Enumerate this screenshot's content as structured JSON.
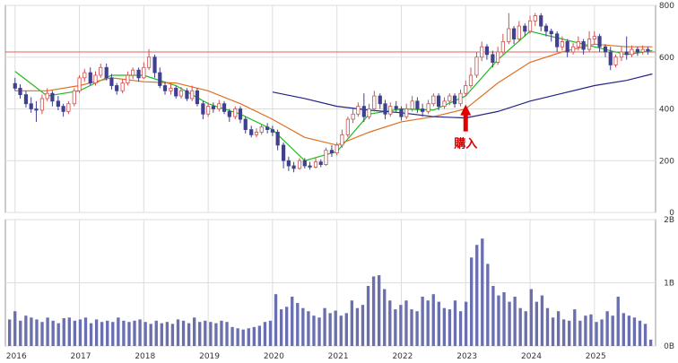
{
  "chart_data": [
    {
      "type": "candlestick",
      "x_ticks": [
        "2016",
        "2017",
        "2018",
        "2019",
        "2020",
        "2021",
        "2022",
        "2023",
        "2024",
        "2025"
      ],
      "y_ticks": [
        "0",
        "200",
        "400",
        "600",
        "800"
      ],
      "ylim": [
        0,
        800
      ],
      "grid": true,
      "reference_line": 620,
      "annotation": {
        "text": "購入",
        "date": 2023.0,
        "price": 410
      },
      "candles": [
        [
          2016.0,
          498,
          480,
          520,
          470
        ],
        [
          2016.08,
          480,
          455,
          495,
          440
        ],
        [
          2016.17,
          455,
          420,
          470,
          405
        ],
        [
          2016.25,
          420,
          400,
          445,
          385
        ],
        [
          2016.33,
          400,
          395,
          430,
          350
        ],
        [
          2016.42,
          395,
          440,
          455,
          380
        ],
        [
          2016.5,
          440,
          460,
          480,
          430
        ],
        [
          2016.58,
          460,
          430,
          470,
          410
        ],
        [
          2016.67,
          430,
          410,
          450,
          395
        ],
        [
          2016.75,
          410,
          390,
          420,
          370
        ],
        [
          2016.83,
          390,
          420,
          430,
          380
        ],
        [
          2016.92,
          420,
          470,
          480,
          410
        ],
        [
          2017.0,
          470,
          520,
          530,
          460
        ],
        [
          2017.08,
          520,
          540,
          555,
          505
        ],
        [
          2017.17,
          540,
          500,
          560,
          490
        ],
        [
          2017.25,
          500,
          530,
          545,
          490
        ],
        [
          2017.33,
          530,
          560,
          575,
          520
        ],
        [
          2017.42,
          560,
          520,
          575,
          510
        ],
        [
          2017.5,
          520,
          490,
          535,
          475
        ],
        [
          2017.58,
          490,
          470,
          500,
          455
        ],
        [
          2017.67,
          470,
          500,
          515,
          460
        ],
        [
          2017.75,
          500,
          530,
          545,
          490
        ],
        [
          2017.83,
          530,
          550,
          560,
          515
        ],
        [
          2017.92,
          550,
          520,
          560,
          505
        ],
        [
          2018.0,
          520,
          560,
          580,
          515
        ],
        [
          2018.08,
          560,
          600,
          630,
          550
        ],
        [
          2018.17,
          600,
          540,
          610,
          520
        ],
        [
          2018.25,
          540,
          490,
          560,
          480
        ],
        [
          2018.33,
          490,
          470,
          505,
          455
        ],
        [
          2018.42,
          470,
          480,
          495,
          455
        ],
        [
          2018.5,
          480,
          450,
          490,
          440
        ],
        [
          2018.58,
          450,
          470,
          485,
          440
        ],
        [
          2018.67,
          470,
          440,
          480,
          430
        ],
        [
          2018.75,
          440,
          470,
          490,
          430
        ],
        [
          2018.83,
          470,
          420,
          480,
          410
        ],
        [
          2018.92,
          420,
          380,
          430,
          360
        ],
        [
          2019.0,
          380,
          410,
          425,
          370
        ],
        [
          2019.08,
          410,
          400,
          425,
          385
        ],
        [
          2019.17,
          400,
          420,
          435,
          390
        ],
        [
          2019.25,
          420,
          390,
          430,
          380
        ],
        [
          2019.33,
          390,
          370,
          400,
          350
        ],
        [
          2019.42,
          370,
          400,
          410,
          360
        ],
        [
          2019.5,
          400,
          360,
          410,
          345
        ],
        [
          2019.58,
          360,
          320,
          370,
          305
        ],
        [
          2019.67,
          320,
          300,
          335,
          290
        ],
        [
          2019.75,
          300,
          310,
          325,
          290
        ],
        [
          2019.83,
          310,
          330,
          340,
          300
        ],
        [
          2019.92,
          330,
          320,
          345,
          305
        ],
        [
          2020.0,
          320,
          310,
          335,
          295
        ],
        [
          2020.08,
          310,
          260,
          320,
          240
        ],
        [
          2020.17,
          260,
          200,
          270,
          170
        ],
        [
          2020.25,
          200,
          180,
          215,
          160
        ],
        [
          2020.33,
          180,
          170,
          195,
          155
        ],
        [
          2020.42,
          170,
          200,
          210,
          165
        ],
        [
          2020.5,
          200,
          180,
          210,
          170
        ],
        [
          2020.58,
          180,
          175,
          195,
          165
        ],
        [
          2020.67,
          175,
          195,
          210,
          170
        ],
        [
          2020.75,
          195,
          185,
          205,
          175
        ],
        [
          2020.83,
          185,
          240,
          250,
          180
        ],
        [
          2020.92,
          240,
          230,
          260,
          215
        ],
        [
          2021.0,
          230,
          260,
          270,
          220
        ],
        [
          2021.08,
          260,
          300,
          320,
          250
        ],
        [
          2021.17,
          300,
          360,
          370,
          290
        ],
        [
          2021.25,
          360,
          380,
          400,
          345
        ],
        [
          2021.33,
          380,
          410,
          425,
          370
        ],
        [
          2021.42,
          410,
          370,
          460,
          350
        ],
        [
          2021.5,
          370,
          400,
          420,
          360
        ],
        [
          2021.58,
          400,
          450,
          470,
          390
        ],
        [
          2021.67,
          450,
          420,
          460,
          400
        ],
        [
          2021.75,
          420,
          380,
          435,
          360
        ],
        [
          2021.83,
          380,
          410,
          425,
          370
        ],
        [
          2021.92,
          410,
          400,
          430,
          385
        ],
        [
          2022.0,
          400,
          370,
          410,
          355
        ],
        [
          2022.08,
          370,
          400,
          420,
          360
        ],
        [
          2022.17,
          400,
          430,
          450,
          390
        ],
        [
          2022.25,
          430,
          400,
          445,
          385
        ],
        [
          2022.33,
          400,
          390,
          420,
          370
        ],
        [
          2022.42,
          390,
          420,
          435,
          380
        ],
        [
          2022.5,
          420,
          450,
          460,
          410
        ],
        [
          2022.58,
          450,
          410,
          460,
          395
        ],
        [
          2022.67,
          410,
          430,
          445,
          400
        ],
        [
          2022.75,
          430,
          450,
          460,
          415
        ],
        [
          2022.83,
          450,
          420,
          460,
          405
        ],
        [
          2022.92,
          420,
          460,
          475,
          410
        ],
        [
          2023.0,
          460,
          490,
          510,
          450
        ],
        [
          2023.08,
          490,
          530,
          560,
          480
        ],
        [
          2023.17,
          530,
          600,
          620,
          520
        ],
        [
          2023.25,
          600,
          640,
          660,
          585
        ],
        [
          2023.33,
          640,
          610,
          650,
          590
        ],
        [
          2023.42,
          610,
          580,
          625,
          560
        ],
        [
          2023.5,
          580,
          620,
          640,
          570
        ],
        [
          2023.58,
          620,
          660,
          690,
          610
        ],
        [
          2023.67,
          660,
          710,
          770,
          650
        ],
        [
          2023.75,
          710,
          670,
          720,
          650
        ],
        [
          2023.83,
          670,
          720,
          740,
          660
        ],
        [
          2023.92,
          720,
          700,
          730,
          680
        ],
        [
          2024.0,
          700,
          740,
          760,
          690
        ],
        [
          2024.08,
          740,
          760,
          770,
          720
        ],
        [
          2024.17,
          760,
          720,
          770,
          700
        ],
        [
          2024.25,
          720,
          700,
          730,
          680
        ],
        [
          2024.33,
          700,
          690,
          710,
          660
        ],
        [
          2024.42,
          690,
          640,
          700,
          620
        ],
        [
          2024.5,
          640,
          660,
          680,
          625
        ],
        [
          2024.58,
          660,
          620,
          670,
          600
        ],
        [
          2024.67,
          620,
          640,
          655,
          610
        ],
        [
          2024.75,
          640,
          660,
          680,
          625
        ],
        [
          2024.83,
          660,
          630,
          670,
          610
        ],
        [
          2024.92,
          630,
          670,
          700,
          620
        ],
        [
          2025.0,
          670,
          680,
          700,
          650
        ],
        [
          2025.08,
          680,
          640,
          690,
          620
        ],
        [
          2025.17,
          640,
          620,
          650,
          600
        ],
        [
          2025.25,
          620,
          570,
          640,
          550
        ],
        [
          2025.33,
          570,
          600,
          610,
          560
        ],
        [
          2025.42,
          600,
          620,
          640,
          585
        ],
        [
          2025.5,
          620,
          610,
          680,
          590
        ],
        [
          2025.58,
          610,
          630,
          645,
          600
        ],
        [
          2025.67,
          630,
          620,
          640,
          605
        ],
        [
          2025.75,
          620,
          630,
          645,
          610
        ],
        [
          2025.83,
          630,
          625,
          640,
          610
        ]
      ],
      "moving_averages": [
        {
          "color": "#22bb22",
          "points": [
            [
              2016.0,
              545
            ],
            [
              2016.5,
              450
            ],
            [
              2017.0,
              470
            ],
            [
              2017.5,
              530
            ],
            [
              2018.0,
              530
            ],
            [
              2018.5,
              490
            ],
            [
              2019.0,
              420
            ],
            [
              2019.5,
              380
            ],
            [
              2020.0,
              320
            ],
            [
              2020.5,
              200
            ],
            [
              2021.0,
              235
            ],
            [
              2021.5,
              380
            ],
            [
              2022.0,
              400
            ],
            [
              2022.5,
              395
            ],
            [
              2023.0,
              450
            ],
            [
              2023.5,
              590
            ],
            [
              2024.0,
              700
            ],
            [
              2024.5,
              670
            ],
            [
              2025.0,
              640
            ],
            [
              2025.5,
              610
            ],
            [
              2025.9,
              625
            ]
          ]
        },
        {
          "color": "#e07020",
          "points": [
            [
              2016.0,
              470
            ],
            [
              2016.5,
              470
            ],
            [
              2017.0,
              490
            ],
            [
              2017.5,
              520
            ],
            [
              2018.0,
              505
            ],
            [
              2018.5,
              500
            ],
            [
              2019.0,
              470
            ],
            [
              2019.5,
              420
            ],
            [
              2020.0,
              360
            ],
            [
              2020.5,
              290
            ],
            [
              2021.0,
              260
            ],
            [
              2021.5,
              310
            ],
            [
              2022.0,
              350
            ],
            [
              2022.5,
              370
            ],
            [
              2023.0,
              400
            ],
            [
              2023.5,
              500
            ],
            [
              2024.0,
              580
            ],
            [
              2024.5,
              620
            ],
            [
              2025.0,
              650
            ],
            [
              2025.5,
              640
            ],
            [
              2025.9,
              640
            ]
          ]
        },
        {
          "color": "#222288",
          "points": [
            [
              2020.0,
              465
            ],
            [
              2020.5,
              440
            ],
            [
              2021.0,
              410
            ],
            [
              2021.5,
              395
            ],
            [
              2022.0,
              385
            ],
            [
              2022.5,
              370
            ],
            [
              2023.0,
              365
            ],
            [
              2023.5,
              390
            ],
            [
              2024.0,
              430
            ],
            [
              2024.5,
              460
            ],
            [
              2025.0,
              490
            ],
            [
              2025.5,
              510
            ],
            [
              2025.9,
              535
            ]
          ]
        }
      ]
    },
    {
      "type": "bar",
      "y_ticks": [
        "0B",
        "1B",
        "2B"
      ],
      "ylim": [
        0,
        2
      ],
      "grid": true,
      "values": [
        0.42,
        0.55,
        0.4,
        0.48,
        0.45,
        0.42,
        0.38,
        0.45,
        0.4,
        0.36,
        0.44,
        0.45,
        0.4,
        0.42,
        0.45,
        0.36,
        0.42,
        0.38,
        0.4,
        0.38,
        0.45,
        0.4,
        0.38,
        0.4,
        0.42,
        0.38,
        0.35,
        0.4,
        0.36,
        0.38,
        0.35,
        0.42,
        0.4,
        0.36,
        0.45,
        0.38,
        0.4,
        0.38,
        0.36,
        0.4,
        0.38,
        0.3,
        0.28,
        0.26,
        0.28,
        0.3,
        0.32,
        0.38,
        0.4,
        0.82,
        0.58,
        0.62,
        0.78,
        0.68,
        0.6,
        0.55,
        0.48,
        0.45,
        0.6,
        0.52,
        0.56,
        0.48,
        0.52,
        0.72,
        0.6,
        0.65,
        0.95,
        1.1,
        1.12,
        0.9,
        0.72,
        0.58,
        0.65,
        0.72,
        0.58,
        0.55,
        0.78,
        0.72,
        0.82,
        0.7,
        0.6,
        0.58,
        0.72,
        0.55,
        0.7,
        1.4,
        1.6,
        1.7,
        1.3,
        0.95,
        0.8,
        0.85,
        0.7,
        0.78,
        0.6,
        0.55,
        0.9,
        0.7,
        0.8,
        0.6,
        0.45,
        0.55,
        0.42,
        0.4,
        0.58,
        0.4,
        0.48,
        0.5,
        0.38,
        0.42,
        0.55,
        0.48,
        0.78,
        0.52,
        0.48,
        0.45,
        0.4,
        0.35,
        0.1
      ]
    }
  ]
}
